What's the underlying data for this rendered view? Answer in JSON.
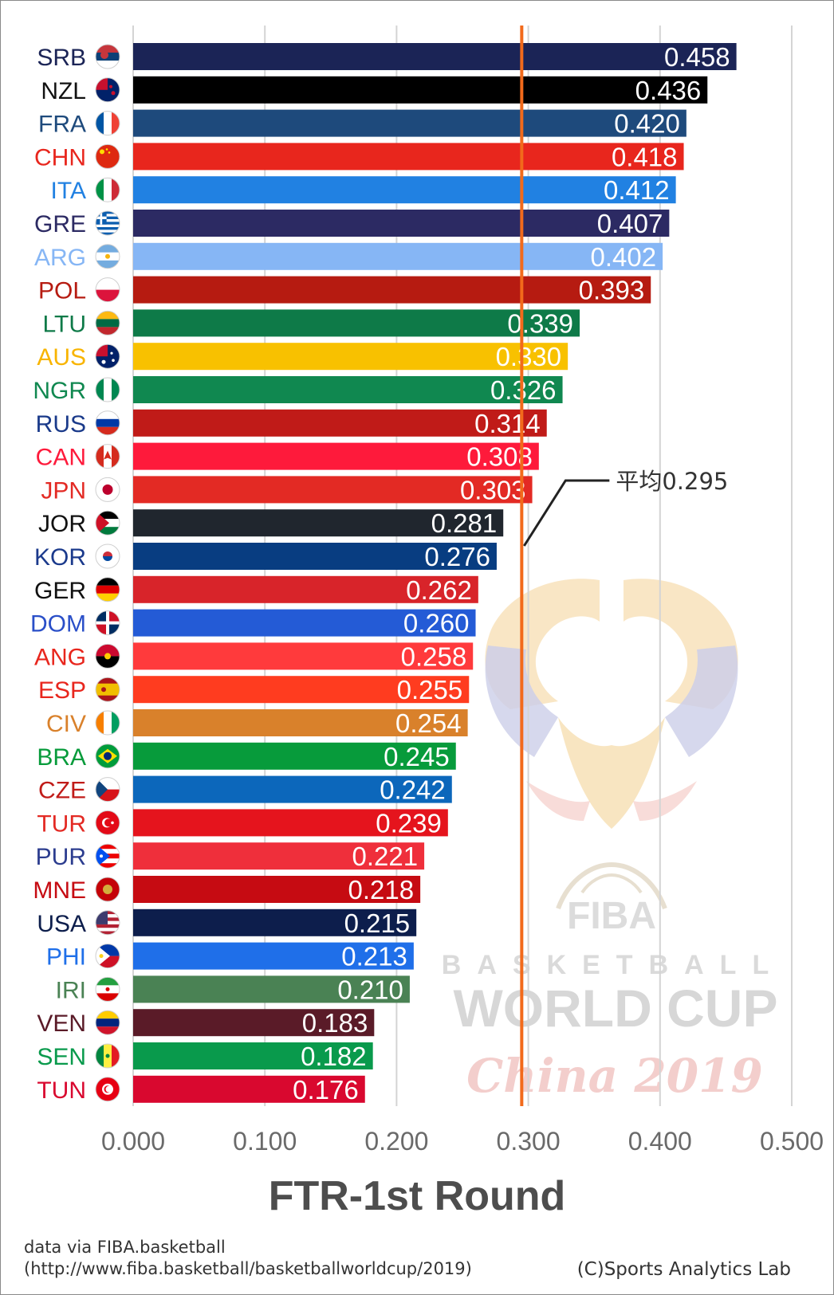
{
  "chart_data": {
    "type": "bar",
    "orientation": "horizontal",
    "xlabel": "FTR-1st Round",
    "xlim": [
      0,
      0.5
    ],
    "xticks": [
      "0.000",
      "0.100",
      "0.200",
      "0.300",
      "0.400",
      "0.500"
    ],
    "grid": true,
    "reference_line": {
      "label": "平均0.295",
      "value": 0.295,
      "color": "#f26a1b"
    },
    "categories": [
      "SRB",
      "NZL",
      "FRA",
      "CHN",
      "ITA",
      "GRE",
      "ARG",
      "POL",
      "LTU",
      "AUS",
      "NGR",
      "RUS",
      "CAN",
      "JPN",
      "JOR",
      "KOR",
      "GER",
      "DOM",
      "ANG",
      "ESP",
      "CIV",
      "BRA",
      "CZE",
      "TUR",
      "PUR",
      "MNE",
      "USA",
      "PHI",
      "IRI",
      "VEN",
      "SEN",
      "TUN"
    ],
    "values": [
      0.458,
      0.436,
      0.42,
      0.418,
      0.412,
      0.407,
      0.402,
      0.393,
      0.339,
      0.33,
      0.326,
      0.314,
      0.308,
      0.303,
      0.281,
      0.276,
      0.262,
      0.26,
      0.258,
      0.255,
      0.254,
      0.245,
      0.242,
      0.239,
      0.221,
      0.218,
      0.215,
      0.213,
      0.21,
      0.183,
      0.182,
      0.176
    ],
    "value_labels": [
      "0.458",
      "0.436",
      "0.420",
      "0.418",
      "0.412",
      "0.407",
      "0.402",
      "0.393",
      "0.339",
      "0.330",
      "0.326",
      "0.314",
      "0.308",
      "0.303",
      "0.281",
      "0.276",
      "0.262",
      "0.260",
      "0.258",
      "0.255",
      "0.254",
      "0.245",
      "0.242",
      "0.239",
      "0.221",
      "0.218",
      "0.215",
      "0.213",
      "0.210",
      "0.183",
      "0.182",
      "0.176"
    ],
    "bar_colors": [
      "#1b2456",
      "#000000",
      "#1e4a7c",
      "#e8261d",
      "#2181e2",
      "#2c2a63",
      "#86b6f5",
      "#b61b11",
      "#0e7a48",
      "#f8c100",
      "#108850",
      "#c01b18",
      "#fe1a3b",
      "#e32a24",
      "#20262e",
      "#083d81",
      "#d8242a",
      "#245bd6",
      "#ff3a3c",
      "#ff3c1f",
      "#d9812b",
      "#079b3b",
      "#0c67bb",
      "#e5141d",
      "#ef2f3b",
      "#c60b12",
      "#0d1e4c",
      "#1f6fe9",
      "#4a8254",
      "#5a1b28",
      "#099a4c",
      "#d9082f"
    ],
    "label_colors": [
      "#1b2456",
      "#111111",
      "#1e4a7c",
      "#e8261d",
      "#2181e2",
      "#2c2a63",
      "#86b6f5",
      "#b61b11",
      "#0e7a48",
      "#f8b400",
      "#108850",
      "#1a3a8a",
      "#fe1a3b",
      "#e32a24",
      "#111111",
      "#1b3a8c",
      "#111111",
      "#2a4fc8",
      "#e8261d",
      "#e8261d",
      "#d9812b",
      "#079b3b",
      "#c01b18",
      "#e32a24",
      "#2c3d8f",
      "#c60b12",
      "#0d1e4c",
      "#1f6fe9",
      "#4a8254",
      "#5a1b28",
      "#099a4c",
      "#d9082f"
    ],
    "flag_icons": [
      "serbia-flag-icon",
      "new-zealand-flag-icon",
      "france-flag-icon",
      "china-flag-icon",
      "italy-flag-icon",
      "greece-flag-icon",
      "argentina-flag-icon",
      "poland-flag-icon",
      "lithuania-flag-icon",
      "australia-flag-icon",
      "nigeria-flag-icon",
      "russia-flag-icon",
      "canada-flag-icon",
      "japan-flag-icon",
      "jordan-flag-icon",
      "korea-flag-icon",
      "germany-flag-icon",
      "dominican-republic-flag-icon",
      "angola-flag-icon",
      "spain-flag-icon",
      "ivory-coast-flag-icon",
      "brazil-flag-icon",
      "czech-flag-icon",
      "turkey-flag-icon",
      "puerto-rico-flag-icon",
      "montenegro-flag-icon",
      "usa-flag-icon",
      "philippines-flag-icon",
      "iran-flag-icon",
      "venezuela-flag-icon",
      "senegal-flag-icon",
      "tunisia-flag-icon"
    ]
  },
  "watermark": {
    "fiba": "FIBA",
    "basketball": "BASKETBALL",
    "world_cup": "WORLD CUP",
    "china": "China 2019"
  },
  "footer": {
    "source_line1": "data via FIBA.basketball",
    "source_line2": "(http://www.fiba.basketball/basketballworldcup/2019)",
    "copyright": "(C)Sports Analytics Lab"
  }
}
